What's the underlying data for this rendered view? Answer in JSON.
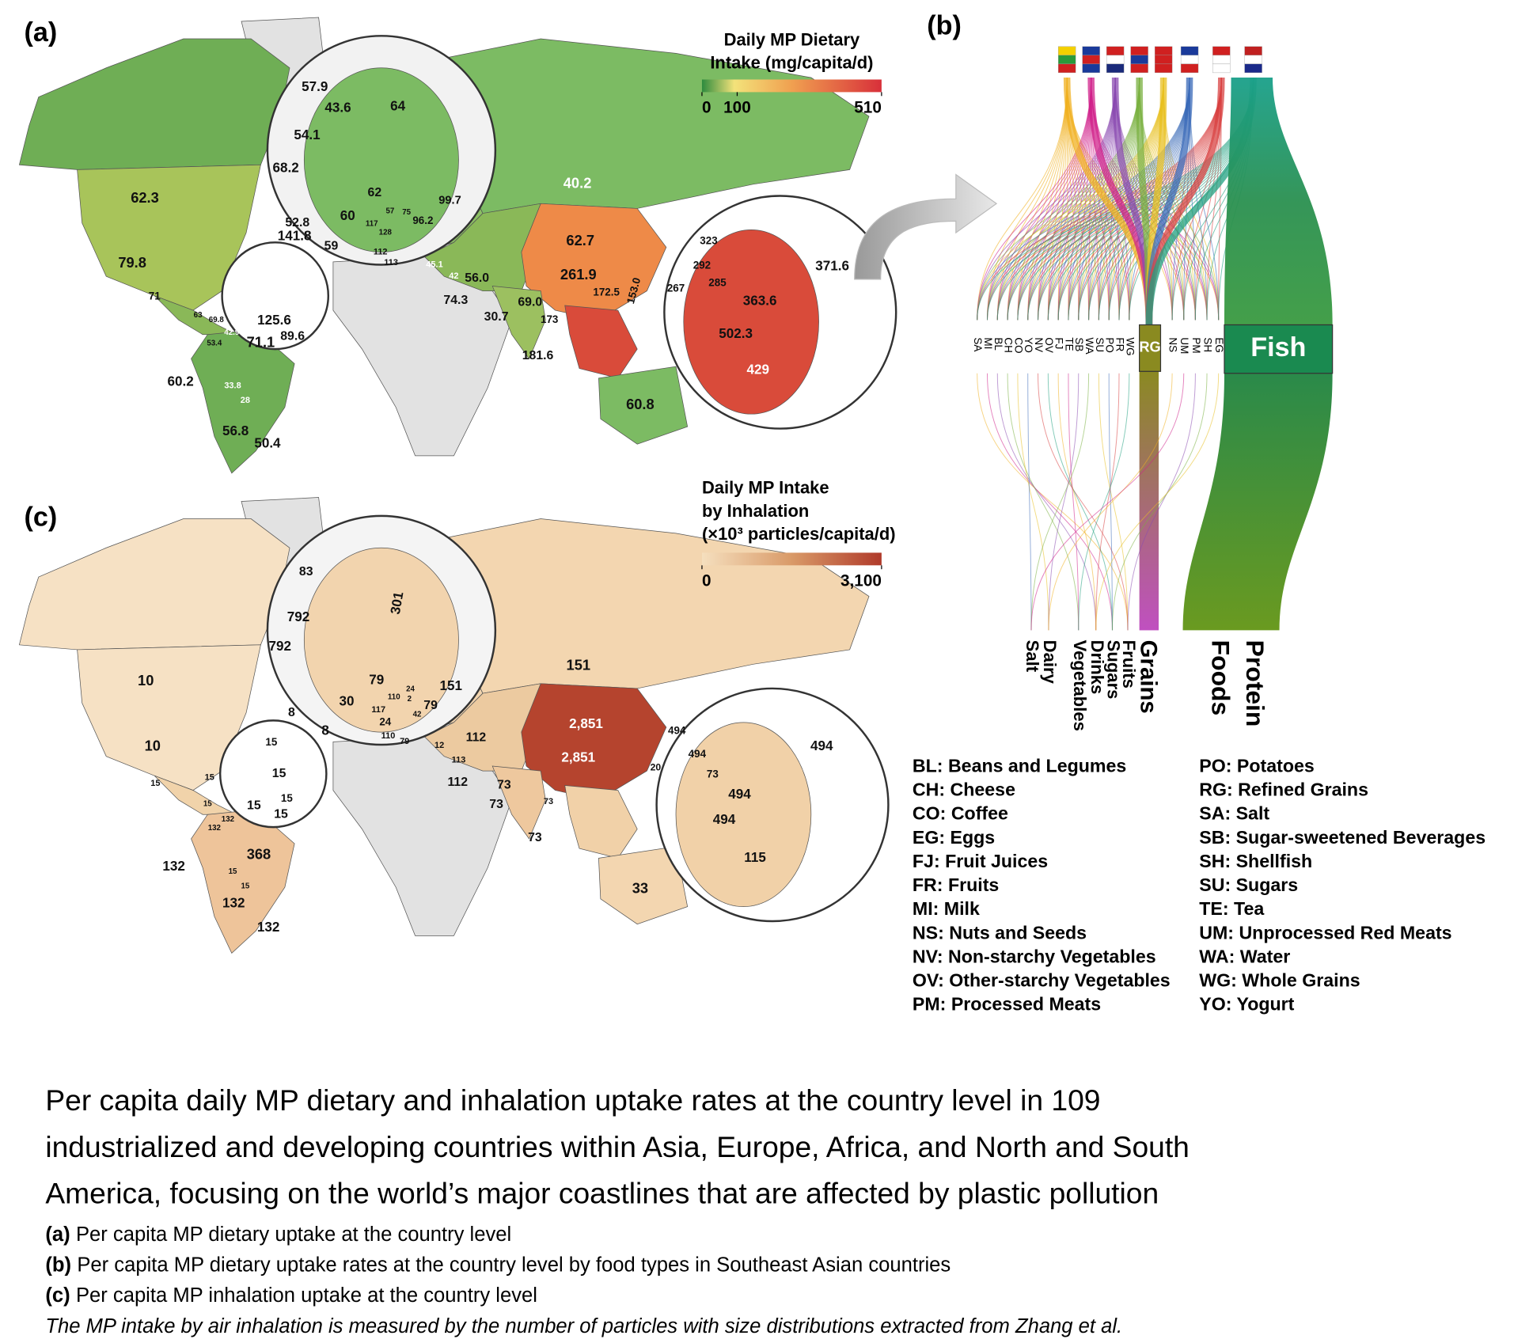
{
  "panel_a": {
    "tag": "(a)",
    "legend_title": [
      "Daily MP Dietary",
      "Intake (mg/capita/d)"
    ],
    "legend_ticks": [
      0,
      100,
      510
    ],
    "labels": [
      "62.3",
      "79.8",
      "71",
      "40.2",
      "57.9",
      "43.6",
      "64",
      "54.1",
      "68.2",
      "62",
      "60",
      "52.8",
      "59",
      "99.7",
      "96.2",
      "57",
      "75",
      "117",
      "128",
      "112",
      "113",
      "45.1",
      "42",
      "56.0",
      "74.3",
      "30.7",
      "69.0",
      "62.7",
      "261.9",
      "172.5",
      "153.0",
      "173",
      "181.6",
      "267",
      "323",
      "292",
      "285",
      "363.6",
      "371.6",
      "502.3",
      "429",
      "60.8",
      "141.8",
      "125.6",
      "89.6",
      "63",
      "69.8",
      "42.9",
      "53.4",
      "71.1",
      "60.2",
      "33.8",
      "28",
      "56.8",
      "50.4"
    ]
  },
  "panel_b": {
    "tag": "(b)",
    "codes_left": [
      "SA",
      "MI",
      "BL",
      "CH",
      "CO",
      "YO",
      "NV",
      "OV",
      "FJ",
      "TE",
      "SB",
      "WA",
      "SU",
      "PO",
      "FR",
      "WG"
    ],
    "codes_right": [
      "NS",
      "UM",
      "PM",
      "SH",
      "EG"
    ],
    "boxes": [
      "RG",
      "Fish"
    ],
    "groups": [
      "Protein",
      "Foods",
      "Grains",
      "Fruits",
      "Sugars",
      "Drinks",
      "Vegetables",
      "Dairy",
      "Salt"
    ],
    "abbreviations": [
      "BL: Beans and Legumes",
      "CH: Cheese",
      "CO: Coffee",
      "EG: Eggs",
      "FJ: Fruit Juices",
      "FR: Fruits",
      "MI: Milk",
      "NS: Nuts and Seeds",
      "NV: Non-starchy Vegetables",
      "OV: Other-starchy Vegetables",
      "PM: Processed Meats",
      "PO: Potatoes",
      "RG: Refined Grains",
      "SA: Salt",
      "SB: Sugar-sweetened Beverages",
      "SH: Shellfish",
      "SU: Sugars",
      "TE: Tea",
      "UM: Unprocessed Red Meats",
      "WA: Water",
      "WG: Whole Grains",
      "YO: Yogurt"
    ]
  },
  "panel_c": {
    "tag": "(c)",
    "legend_title": [
      "Daily MP Intake",
      "by Inhalation",
      "(×10³ particles/capita/d)"
    ],
    "legend_ticks": [
      0,
      {
        "value": 3100,
        "label": "3,100"
      }
    ],
    "labels": [
      "83",
      "792",
      "792",
      "301",
      "10",
      "10",
      "151",
      "79",
      "151",
      "30",
      "8",
      "8",
      "117",
      "110",
      "24",
      "2",
      "79",
      "42",
      "24",
      "110",
      "79",
      "12",
      "112",
      "113",
      "112",
      "73",
      "73",
      "73",
      "73",
      "2,851",
      "2,851",
      "20",
      "494",
      "494",
      "73",
      "494",
      "494",
      "494",
      "115",
      "33",
      "15",
      "15",
      "15",
      "15",
      "15",
      "15",
      "15",
      "15",
      "132",
      "132",
      "368",
      "132",
      "15",
      "15",
      "132",
      "132"
    ]
  },
  "caption": {
    "title": [
      "Per capita daily MP dietary and inhalation uptake rates at the country level in 109",
      "industrialized and developing countries within Asia, Europe, Africa, and North and South",
      "America, focusing on the world’s major coastlines that are affected by plastic pollution"
    ],
    "items": [
      {
        "tag": "(a)",
        "text": "Per capita MP dietary uptake at the country level"
      },
      {
        "tag": "(b)",
        "text": "Per capita MP dietary uptake rates at the country level by food types in Southeast Asian countries"
      },
      {
        "tag": "(c)",
        "text": "Per capita MP inhalation uptake at the country level"
      }
    ],
    "note": "The MP intake by air inhalation is measured by the number of particles with size distributions extracted from Zhang et al."
  }
}
